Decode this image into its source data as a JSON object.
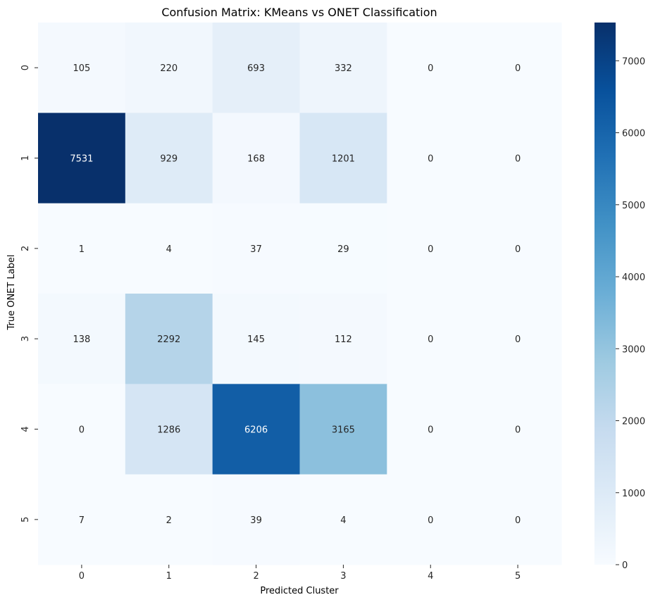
{
  "chart_data": {
    "type": "heatmap",
    "title": "Confusion Matrix: KMeans vs ONET Classification",
    "xlabel": "Predicted Cluster",
    "ylabel": "True ONET Label",
    "x_categories": [
      "0",
      "1",
      "2",
      "3",
      "4",
      "5"
    ],
    "y_categories": [
      "0",
      "1",
      "2",
      "3",
      "4",
      "5"
    ],
    "values": [
      [
        105,
        220,
        693,
        332,
        0,
        0
      ],
      [
        7531,
        929,
        168,
        1201,
        0,
        0
      ],
      [
        1,
        4,
        37,
        29,
        0,
        0
      ],
      [
        138,
        2292,
        145,
        112,
        0,
        0
      ],
      [
        0,
        1286,
        6206,
        3165,
        0,
        0
      ],
      [
        7,
        2,
        39,
        4,
        0,
        0
      ]
    ],
    "colormap": "Blues",
    "colorbar": {
      "range": [
        0,
        7531
      ],
      "ticks": [
        0,
        1000,
        2000,
        3000,
        4000,
        5000,
        6000,
        7000
      ]
    },
    "colors": {
      "low": "#f7fbff",
      "high": "#08306b"
    }
  }
}
